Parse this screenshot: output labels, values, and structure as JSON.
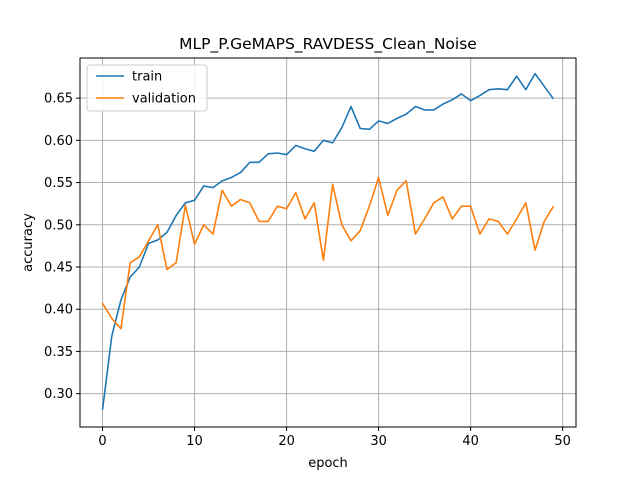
{
  "chart_data": {
    "type": "line",
    "title": "MLP_P.GeMAPS_RAVDESS_Clean_Noise",
    "xlabel": "epoch",
    "ylabel": "accuracy",
    "xlim": [
      -2.45,
      51.45
    ],
    "ylim": [
      0.2605,
      0.6975
    ],
    "xticks": [
      0,
      10,
      20,
      30,
      40,
      50
    ],
    "yticks": [
      0.3,
      0.35,
      0.4,
      0.45,
      0.5,
      0.55,
      0.6,
      0.65
    ],
    "grid": true,
    "legend_position": "top-left",
    "x": [
      0,
      1,
      2,
      3,
      4,
      5,
      6,
      7,
      8,
      9,
      10,
      11,
      12,
      13,
      14,
      15,
      16,
      17,
      18,
      19,
      20,
      21,
      22,
      23,
      24,
      25,
      26,
      27,
      28,
      29,
      30,
      31,
      32,
      33,
      34,
      35,
      36,
      37,
      38,
      39,
      40,
      41,
      42,
      43,
      44,
      45,
      46,
      47,
      48,
      49
    ],
    "series": [
      {
        "name": "train",
        "color": "#1f77b4",
        "values": [
          0.281,
          0.368,
          0.411,
          0.438,
          0.45,
          0.478,
          0.482,
          0.491,
          0.511,
          0.526,
          0.529,
          0.546,
          0.544,
          0.552,
          0.556,
          0.562,
          0.574,
          0.574,
          0.584,
          0.585,
          0.583,
          0.594,
          0.59,
          0.587,
          0.6,
          0.597,
          0.615,
          0.64,
          0.614,
          0.613,
          0.623,
          0.62,
          0.626,
          0.631,
          0.64,
          0.636,
          0.636,
          0.643,
          0.648,
          0.655,
          0.647,
          0.653,
          0.66,
          0.661,
          0.66,
          0.676,
          0.66,
          0.679,
          0.664,
          0.649
        ]
      },
      {
        "name": "validation",
        "color": "#ff7f0e",
        "values": [
          0.407,
          0.389,
          0.377,
          0.455,
          0.462,
          0.481,
          0.5,
          0.447,
          0.455,
          0.523,
          0.477,
          0.5,
          0.489,
          0.541,
          0.522,
          0.53,
          0.526,
          0.504,
          0.504,
          0.522,
          0.519,
          0.538,
          0.507,
          0.526,
          0.458,
          0.548,
          0.5,
          0.481,
          0.493,
          0.522,
          0.556,
          0.511,
          0.541,
          0.552,
          0.489,
          0.507,
          0.526,
          0.533,
          0.507,
          0.522,
          0.522,
          0.489,
          0.507,
          0.504,
          0.489,
          0.507,
          0.526,
          0.47,
          0.504,
          0.522
        ]
      }
    ]
  }
}
